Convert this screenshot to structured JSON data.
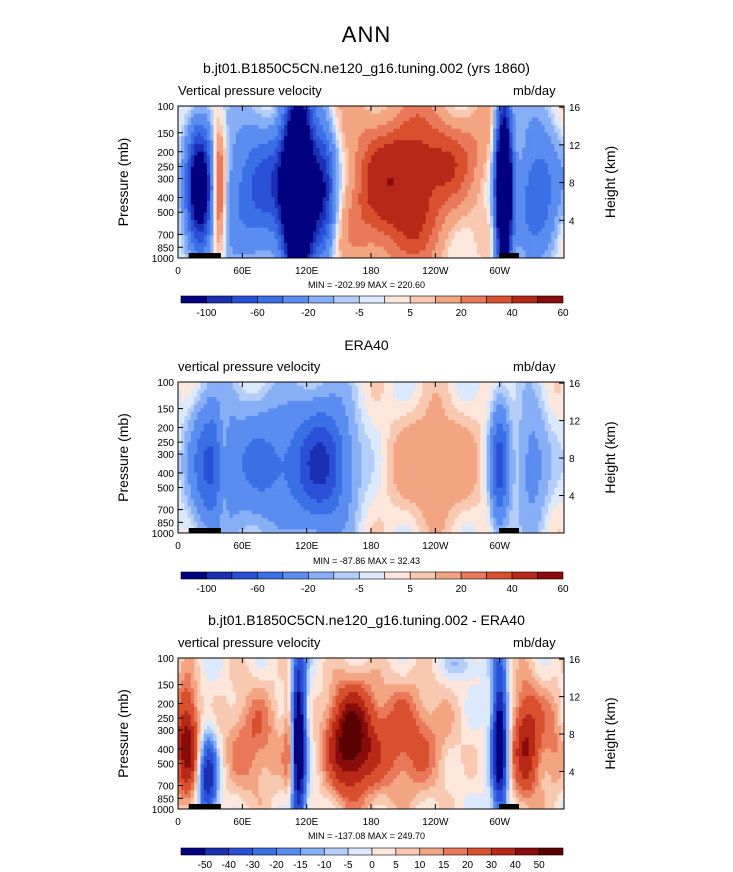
{
  "title": "ANN",
  "panels": [
    {
      "title": "b.jt01.B1850C5CN.ne120_g16.tuning.002 (yrs 1860)",
      "variable": "Vertical pressure velocity",
      "units": "mb/day",
      "minmax": "MIN = -202.99   MAX = 220.60"
    },
    {
      "title": "ERA40",
      "variable": "vertical pressure velocity",
      "units": "mb/day",
      "minmax": "MIN = -87.86   MAX =  32.43"
    },
    {
      "title": "b.jt01.B1850C5CN.ne120_g16.tuning.002 - ERA40",
      "variable": "vertical pressure velocity",
      "units": "mb/day",
      "minmax": "MIN = -137.08   MAX = 249.70"
    }
  ],
  "chart_data": [
    {
      "type": "heatmap",
      "xlabel": "",
      "ylabel": "Pressure (mb)",
      "y2label": "Height (km)",
      "x_ticks": [
        "0",
        "60E",
        "120E",
        "180",
        "120W",
        "60W"
      ],
      "x_tick_values": [
        0,
        60,
        120,
        180,
        240,
        300
      ],
      "xlim": [
        0,
        360
      ],
      "y_ticks": [
        "100",
        "150",
        "200",
        "250",
        "300",
        "400",
        "500",
        "700",
        "850",
        "1000"
      ],
      "y_tick_values": [
        100,
        150,
        200,
        250,
        300,
        400,
        500,
        700,
        850,
        1000
      ],
      "y2_ticks": [
        "4",
        "8",
        "12",
        "16"
      ],
      "ylim": [
        1000,
        100
      ],
      "log_y": true,
      "colorbar_labels": [
        "-100",
        "-60",
        "-20",
        "-5",
        "5",
        "20",
        "40",
        "60"
      ],
      "colors": [
        "#000080",
        "#1a2fb4",
        "#2b50d8",
        "#3b6fe6",
        "#5b8cf0",
        "#86aff6",
        "#b4cdf9",
        "#dce8fb",
        "#fde6dc",
        "#f9c8b0",
        "#f3a582",
        "#e9795a",
        "#d9502f",
        "#b82818",
        "#8a0c0a"
      ],
      "min": -202.99,
      "max": 220.6
    },
    {
      "type": "heatmap",
      "xlabel": "",
      "ylabel": "Pressure (mb)",
      "y2label": "Height (km)",
      "x_ticks": [
        "0",
        "60E",
        "120E",
        "180",
        "120W",
        "60W"
      ],
      "x_tick_values": [
        0,
        60,
        120,
        180,
        240,
        300
      ],
      "xlim": [
        0,
        360
      ],
      "y_ticks": [
        "100",
        "150",
        "200",
        "250",
        "300",
        "400",
        "500",
        "700",
        "850",
        "1000"
      ],
      "y_tick_values": [
        100,
        150,
        200,
        250,
        300,
        400,
        500,
        700,
        850,
        1000
      ],
      "y2_ticks": [
        "4",
        "8",
        "12",
        "16"
      ],
      "ylim": [
        1000,
        100
      ],
      "log_y": true,
      "colorbar_labels": [
        "-100",
        "-60",
        "-20",
        "-5",
        "5",
        "20",
        "40",
        "60"
      ],
      "colors": [
        "#000080",
        "#1a2fb4",
        "#2b50d8",
        "#3b6fe6",
        "#5b8cf0",
        "#86aff6",
        "#b4cdf9",
        "#dce8fb",
        "#fde6dc",
        "#f9c8b0",
        "#f3a582",
        "#e9795a",
        "#d9502f",
        "#b82818",
        "#8a0c0a"
      ],
      "min": -87.86,
      "max": 32.43
    },
    {
      "type": "heatmap",
      "xlabel": "",
      "ylabel": "Pressure (mb)",
      "y2label": "Height (km)",
      "x_ticks": [
        "0",
        "60E",
        "120E",
        "180",
        "120W",
        "60W"
      ],
      "x_tick_values": [
        0,
        60,
        120,
        180,
        240,
        300
      ],
      "xlim": [
        0,
        360
      ],
      "y_ticks": [
        "100",
        "150",
        "200",
        "250",
        "300",
        "400",
        "500",
        "700",
        "850",
        "1000"
      ],
      "y_tick_values": [
        100,
        150,
        200,
        250,
        300,
        400,
        500,
        700,
        850,
        1000
      ],
      "y2_ticks": [
        "4",
        "8",
        "12",
        "16"
      ],
      "ylim": [
        1000,
        100
      ],
      "log_y": true,
      "colorbar_labels": [
        "-50",
        "-40",
        "-30",
        "-20",
        "-15",
        "-10",
        "-5",
        "0",
        "5",
        "10",
        "15",
        "20",
        "30",
        "40",
        "50"
      ],
      "colors": [
        "#000080",
        "#1a2fb4",
        "#2b50d8",
        "#3b6fe6",
        "#5b8cf0",
        "#86aff6",
        "#b4cdf9",
        "#dce8fb",
        "#fde6dc",
        "#f9c8b0",
        "#f3a582",
        "#e9795a",
        "#d9502f",
        "#b82818",
        "#8a0c0a",
        "#5a0000"
      ],
      "min": -137.08,
      "max": 249.7
    }
  ]
}
